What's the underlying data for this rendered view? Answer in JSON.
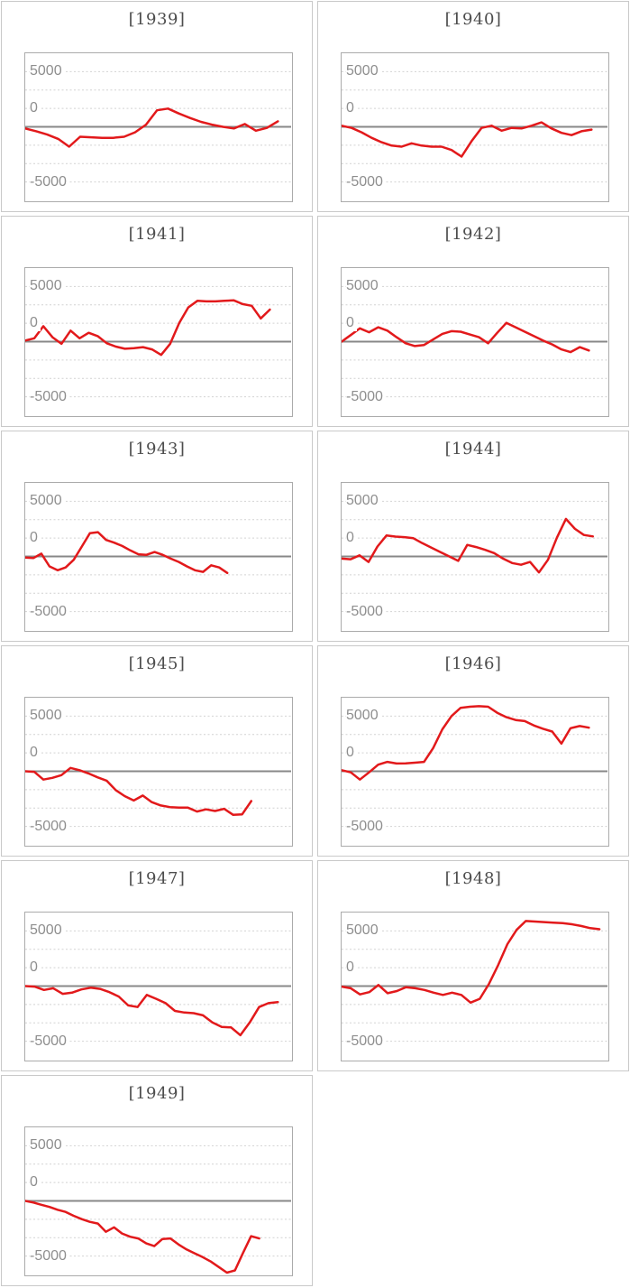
{
  "style": {
    "series_red": "#e2191b",
    "zero_line_gray": "#888888",
    "dotted_grid_gray": "#d2d2d2",
    "plot_border_gray": "#ababab",
    "card_border_gray": "#c9c9c9",
    "title_gray": "#4d4d4d",
    "tick_label_gray": "#8e8e8e",
    "background": "#ffffff"
  },
  "chart_data": {
    "type": "line",
    "layout": "small-multiples, 2-column grid of yearly panels, no x-axis labels, dotted horizontal gridlines, solid gray zero baseline",
    "series_color": "#e2191b",
    "y_axis": {
      "tick_labels": [
        {
          "text": "5000",
          "row": 1
        },
        {
          "text": "0",
          "row": 3
        },
        {
          "text": "-5000",
          "row": 7
        }
      ],
      "dotted_rows": [
        1,
        2,
        3,
        5,
        6,
        7
      ],
      "zero_line_row": 4,
      "rows_total": 8,
      "units_per_row": 1667,
      "ylim": [
        -6667,
        6667
      ],
      "grid": "dotted horizontal only"
    },
    "panels": [
      {
        "title": "[1939]",
        "year": 1939,
        "x_end": 0.95,
        "values": [
          -150,
          -400,
          -700,
          -1100,
          -1800,
          -900,
          -950,
          -1000,
          -1000,
          -900,
          -500,
          200,
          1500,
          1650,
          1200,
          800,
          450,
          200,
          0,
          -150,
          250,
          -350,
          -100,
          500
        ]
      },
      {
        "title": "[1940]",
        "year": 1940,
        "x_end": 0.94,
        "values": [
          100,
          -100,
          -500,
          -1000,
          -1400,
          -1700,
          -1800,
          -1500,
          -1700,
          -1800,
          -1800,
          -2100,
          -2700,
          -1300,
          -100,
          100,
          -350,
          -100,
          -150,
          100,
          400,
          -150,
          -550,
          -750,
          -400,
          -250
        ]
      },
      {
        "title": "[1941]",
        "year": 1941,
        "x_end": 0.92,
        "values": [
          100,
          300,
          1400,
          400,
          -200,
          1000,
          300,
          800,
          500,
          -150,
          -450,
          -650,
          -600,
          -500,
          -700,
          -1200,
          -200,
          1700,
          3100,
          3700,
          3650,
          3650,
          3700,
          3750,
          3400,
          3250,
          2100,
          2900
        ]
      },
      {
        "title": "[1942]",
        "year": 1942,
        "x_end": 0.93,
        "values": [
          0,
          600,
          1200,
          850,
          1300,
          1000,
          400,
          -150,
          -400,
          -300,
          200,
          700,
          950,
          900,
          650,
          400,
          -150,
          800,
          1700,
          1300,
          900,
          500,
          100,
          -250,
          -700,
          -950,
          -500,
          -800
        ]
      },
      {
        "title": "[1943]",
        "year": 1943,
        "x_end": 0.76,
        "values": [
          -100,
          -150,
          250,
          -900,
          -1250,
          -1000,
          -300,
          900,
          2100,
          2200,
          1500,
          1250,
          950,
          550,
          200,
          150,
          400,
          150,
          -200,
          -500,
          -900,
          -1250,
          -1400,
          -800,
          -1000,
          -1500
        ]
      },
      {
        "title": "[1944]",
        "year": 1944,
        "x_end": 0.945,
        "values": [
          -200,
          -250,
          100,
          -500,
          900,
          1900,
          1800,
          1750,
          1650,
          1200,
          800,
          400,
          0,
          -400,
          1050,
          850,
          600,
          300,
          -200,
          -600,
          -750,
          -500,
          -1450,
          -300,
          1700,
          3400,
          2500,
          1950,
          1820
        ]
      },
      {
        "title": "[1945]",
        "year": 1945,
        "x_end": 0.85,
        "values": [
          0,
          -50,
          -750,
          -600,
          -350,
          300,
          100,
          -200,
          -550,
          -850,
          -1700,
          -2250,
          -2650,
          -2200,
          -2800,
          -3100,
          -3250,
          -3300,
          -3300,
          -3650,
          -3450,
          -3600,
          -3400,
          -3950,
          -3900,
          -2700
        ]
      },
      {
        "title": "[1946]",
        "year": 1946,
        "x_end": 0.93,
        "values": [
          100,
          -100,
          -750,
          -100,
          600,
          850,
          700,
          720,
          780,
          850,
          2100,
          3800,
          5000,
          5750,
          5850,
          5900,
          5850,
          5300,
          4900,
          4650,
          4550,
          4150,
          3850,
          3600,
          2500,
          3900,
          4100,
          3950
        ]
      },
      {
        "title": "[1947]",
        "year": 1947,
        "x_end": 0.95,
        "values": [
          0,
          -50,
          -350,
          -200,
          -700,
          -600,
          -300,
          -150,
          -250,
          -550,
          -950,
          -1750,
          -1900,
          -800,
          -1150,
          -1550,
          -2250,
          -2400,
          -2450,
          -2650,
          -3300,
          -3700,
          -3750,
          -4450,
          -3300,
          -1900,
          -1550,
          -1450
        ]
      },
      {
        "title": "[1948]",
        "year": 1948,
        "x_end": 0.97,
        "values": [
          -50,
          -200,
          -750,
          -550,
          100,
          -650,
          -450,
          -100,
          -200,
          -350,
          -600,
          -800,
          -600,
          -800,
          -1500,
          -1150,
          200,
          1900,
          3800,
          5100,
          5900,
          5850,
          5800,
          5750,
          5700,
          5600,
          5450,
          5250,
          5150
        ]
      },
      {
        "title": "[1949]",
        "year": 1949,
        "x_end": 0.88,
        "values": [
          0,
          -150,
          -350,
          -550,
          -800,
          -1000,
          -1350,
          -1650,
          -1900,
          -2050,
          -2800,
          -2400,
          -2950,
          -3250,
          -3400,
          -3850,
          -4100,
          -3450,
          -3400,
          -3950,
          -4400,
          -4750,
          -5100,
          -5500,
          -6000,
          -6500,
          -6300,
          -4700,
          -3200,
          -3400
        ]
      }
    ]
  }
}
